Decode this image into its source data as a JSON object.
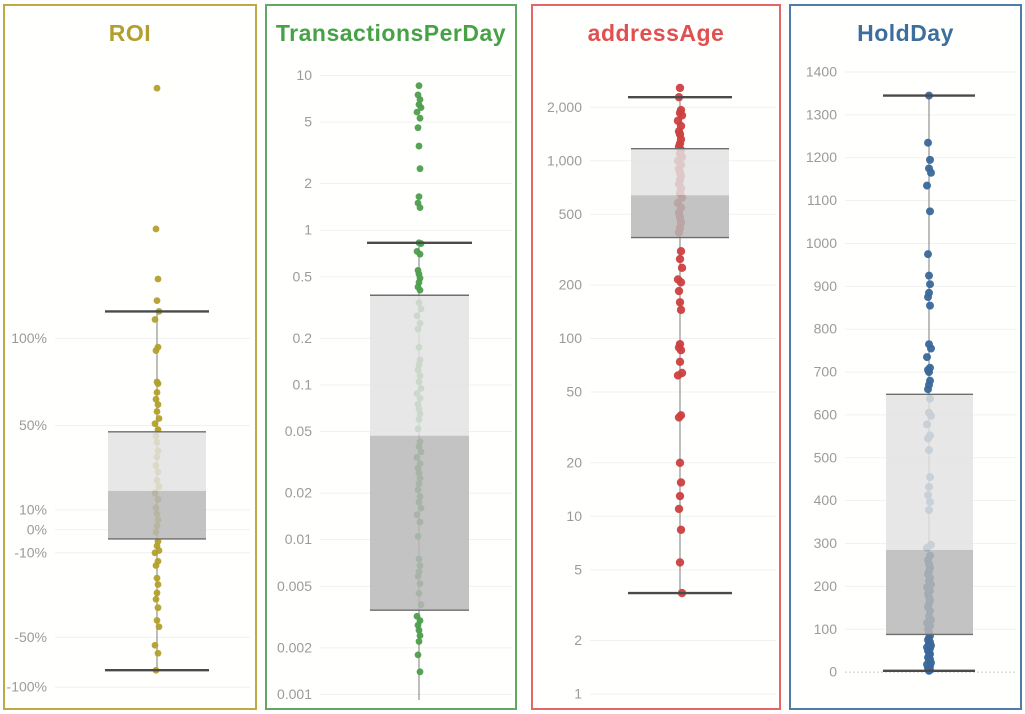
{
  "shared_style": {
    "background": "#ffffff",
    "box_light": "#e2e2e2",
    "box_dark": "#b7b7b7",
    "box_edge": "#6e6e6e",
    "whisker_cap": "#4a4a4a",
    "center_line": "#9a9a9a",
    "grid_line": "#f1f1f1",
    "tick_label_color": "#9b9b9b"
  },
  "chart_data": [
    {
      "type": "box-scatter",
      "title": "ROI",
      "title_color": "#b1a02f",
      "border_color": "#bfa944",
      "point_color": "#b3a02c",
      "point_radius": 3.4,
      "scale": {
        "type": "anchors",
        "anchors": [
          [
            9,
            0.044
          ],
          [
            2.6,
            0.3
          ],
          [
            1,
            0.435
          ],
          [
            0.5,
            0.571
          ],
          [
            0.1,
            0.703
          ],
          [
            0,
            0.734
          ],
          [
            -0.1,
            0.77
          ],
          [
            -0.5,
            0.902
          ],
          [
            -1,
            0.98
          ]
        ]
      },
      "ticks": [
        {
          "label": "100%",
          "value": 1
        },
        {
          "label": "50%",
          "value": 0.5
        },
        {
          "label": "10%",
          "value": 0.1
        },
        {
          "label": "0%",
          "value": 0
        },
        {
          "label": "-10%",
          "value": -0.1
        },
        {
          "label": "-50%",
          "value": -0.5
        },
        {
          "label": "-100%",
          "value": -1
        }
      ],
      "box": {
        "whisker_high": 1.5,
        "q3": 0.47,
        "median": 0.19,
        "q1": -0.04,
        "whisker_low": -0.83
      },
      "cap_low": true,
      "points": [
        9.0,
        3.5,
        2.1,
        1.7,
        1.5,
        1.35,
        0.95,
        0.93,
        0.75,
        0.74,
        0.69,
        0.65,
        0.62,
        0.58,
        0.54,
        0.51,
        0.48,
        0.45,
        0.42,
        0.38,
        0.35,
        0.31,
        0.28,
        0.24,
        0.21,
        0.18,
        0.15,
        0.11,
        0.08,
        0.05,
        0.02,
        -0.01,
        -0.05,
        -0.07,
        -0.09,
        -0.1,
        -0.14,
        -0.16,
        -0.22,
        -0.25,
        -0.29,
        -0.32,
        -0.36,
        -0.42,
        -0.45,
        -0.58,
        -0.66,
        -0.83
      ]
    },
    {
      "type": "box-scatter",
      "title": "TransactionsPerDay",
      "title_color": "#47a247",
      "border_color": "#62a862",
      "point_color": "#4d9e4d",
      "point_radius": 3.4,
      "scale": {
        "type": "log",
        "domain": [
          12.6,
          0.00092
        ]
      },
      "ticks": [
        {
          "label": "10",
          "value": 10
        },
        {
          "label": "5",
          "value": 5
        },
        {
          "label": "2",
          "value": 2
        },
        {
          "label": "1",
          "value": 1
        },
        {
          "label": "0.5",
          "value": 0.5
        },
        {
          "label": "0.2",
          "value": 0.2
        },
        {
          "label": "0.1",
          "value": 0.1
        },
        {
          "label": "0.05",
          "value": 0.05
        },
        {
          "label": "0.02",
          "value": 0.02
        },
        {
          "label": "0.01",
          "value": 0.01
        },
        {
          "label": "0.005",
          "value": 0.005
        },
        {
          "label": "0.002",
          "value": 0.002
        },
        {
          "label": "0.001",
          "value": 0.001
        }
      ],
      "box": {
        "whisker_high": 0.83,
        "q3": 0.38,
        "median": 0.047,
        "q1": 0.0035,
        "whisker_low": 0.0009
      },
      "cap_low": false,
      "points": [
        8.6,
        7.5,
        7.0,
        6.5,
        6.2,
        5.8,
        5.3,
        4.6,
        3.5,
        2.5,
        1.65,
        1.5,
        1.4,
        0.83,
        0.82,
        0.73,
        0.7,
        0.55,
        0.52,
        0.49,
        0.46,
        0.43,
        0.41,
        0.34,
        0.31,
        0.28,
        0.25,
        0.23,
        0.175,
        0.145,
        0.135,
        0.125,
        0.115,
        0.105,
        0.095,
        0.088,
        0.082,
        0.075,
        0.07,
        0.065,
        0.06,
        0.052,
        0.043,
        0.04,
        0.037,
        0.034,
        0.031,
        0.029,
        0.027,
        0.025,
        0.023,
        0.021,
        0.019,
        0.0175,
        0.016,
        0.0145,
        0.013,
        0.0105,
        0.0075,
        0.0068,
        0.0062,
        0.0058,
        0.0052,
        0.0045,
        0.0038,
        0.0032,
        0.003,
        0.0028,
        0.0026,
        0.0024,
        0.0022,
        0.0018,
        0.0014
      ]
    },
    {
      "type": "box-scatter",
      "title": "addressAge",
      "title_color": "#e05050",
      "border_color": "#e66565",
      "point_color": "#cc4040",
      "point_radius": 4.2,
      "scale": {
        "type": "log",
        "domain": [
          3690,
          0.926
        ]
      },
      "ticks": [
        {
          "label": "2,000",
          "value": 2000
        },
        {
          "label": "1,000",
          "value": 1000
        },
        {
          "label": "500",
          "value": 500
        },
        {
          "label": "200",
          "value": 200
        },
        {
          "label": "100",
          "value": 100
        },
        {
          "label": "50",
          "value": 50
        },
        {
          "label": "20",
          "value": 20
        },
        {
          "label": "10",
          "value": 10
        },
        {
          "label": "5",
          "value": 5
        },
        {
          "label": "2",
          "value": 2
        },
        {
          "label": "1",
          "value": 1
        }
      ],
      "box": {
        "whisker_high": 2280,
        "q3": 1170,
        "median": 640,
        "q1": 370,
        "whisker_low": 3.7
      },
      "cap_low": true,
      "points": [
        2570,
        2280,
        1930,
        1860,
        1800,
        1680,
        1570,
        1465,
        1410,
        1320,
        1250,
        1200,
        1150,
        1100,
        1050,
        1000,
        950,
        900,
        860,
        820,
        780,
        740,
        700,
        660,
        620,
        580,
        545,
        510,
        480,
        450,
        420,
        395,
        310,
        280,
        250,
        215,
        207,
        185,
        160,
        145,
        93,
        89,
        86,
        74,
        64,
        62,
        37,
        36,
        20,
        15.5,
        13,
        11,
        8.4,
        5.5,
        3.7
      ]
    },
    {
      "type": "box-scatter",
      "title": "HoldDay",
      "title_color": "#3d6e9e",
      "border_color": "#507ca8",
      "point_color": "#3a689a",
      "point_radius": 4.0,
      "scale": {
        "type": "linear",
        "domain": [
          1428,
          -65
        ]
      },
      "ticks": [
        {
          "label": "1400",
          "value": 1400
        },
        {
          "label": "1300",
          "value": 1300
        },
        {
          "label": "1200",
          "value": 1200
        },
        {
          "label": "1100",
          "value": 1100
        },
        {
          "label": "1000",
          "value": 1000
        },
        {
          "label": "900",
          "value": 900
        },
        {
          "label": "800",
          "value": 800
        },
        {
          "label": "700",
          "value": 700
        },
        {
          "label": "600",
          "value": 600
        },
        {
          "label": "500",
          "value": 500
        },
        {
          "label": "400",
          "value": 400
        },
        {
          "label": "300",
          "value": 300
        },
        {
          "label": "200",
          "value": 200
        },
        {
          "label": "100",
          "value": 100
        },
        {
          "label": "0",
          "value": 0,
          "dotted": true
        }
      ],
      "box": {
        "whisker_high": 1345,
        "q3": 648,
        "median": 285,
        "q1": 88,
        "whisker_low": 3
      },
      "cap_low": true,
      "points": [
        1345,
        1235,
        1195,
        1175,
        1165,
        1135,
        1075,
        975,
        925,
        905,
        885,
        875,
        855,
        765,
        755,
        735,
        710,
        705,
        700,
        680,
        670,
        660,
        638,
        605,
        598,
        578,
        552,
        545,
        518,
        455,
        432,
        413,
        397,
        378,
        297,
        290,
        272,
        262,
        252,
        243,
        235,
        228,
        220,
        213,
        205,
        198,
        190,
        183,
        175,
        168,
        160,
        152,
        143,
        130,
        122,
        115,
        108,
        100,
        93,
        85,
        80,
        75,
        70,
        66,
        62,
        58,
        55,
        50,
        46,
        42,
        38,
        34,
        30,
        26,
        22,
        18,
        14,
        10,
        8,
        5,
        3
      ]
    }
  ]
}
